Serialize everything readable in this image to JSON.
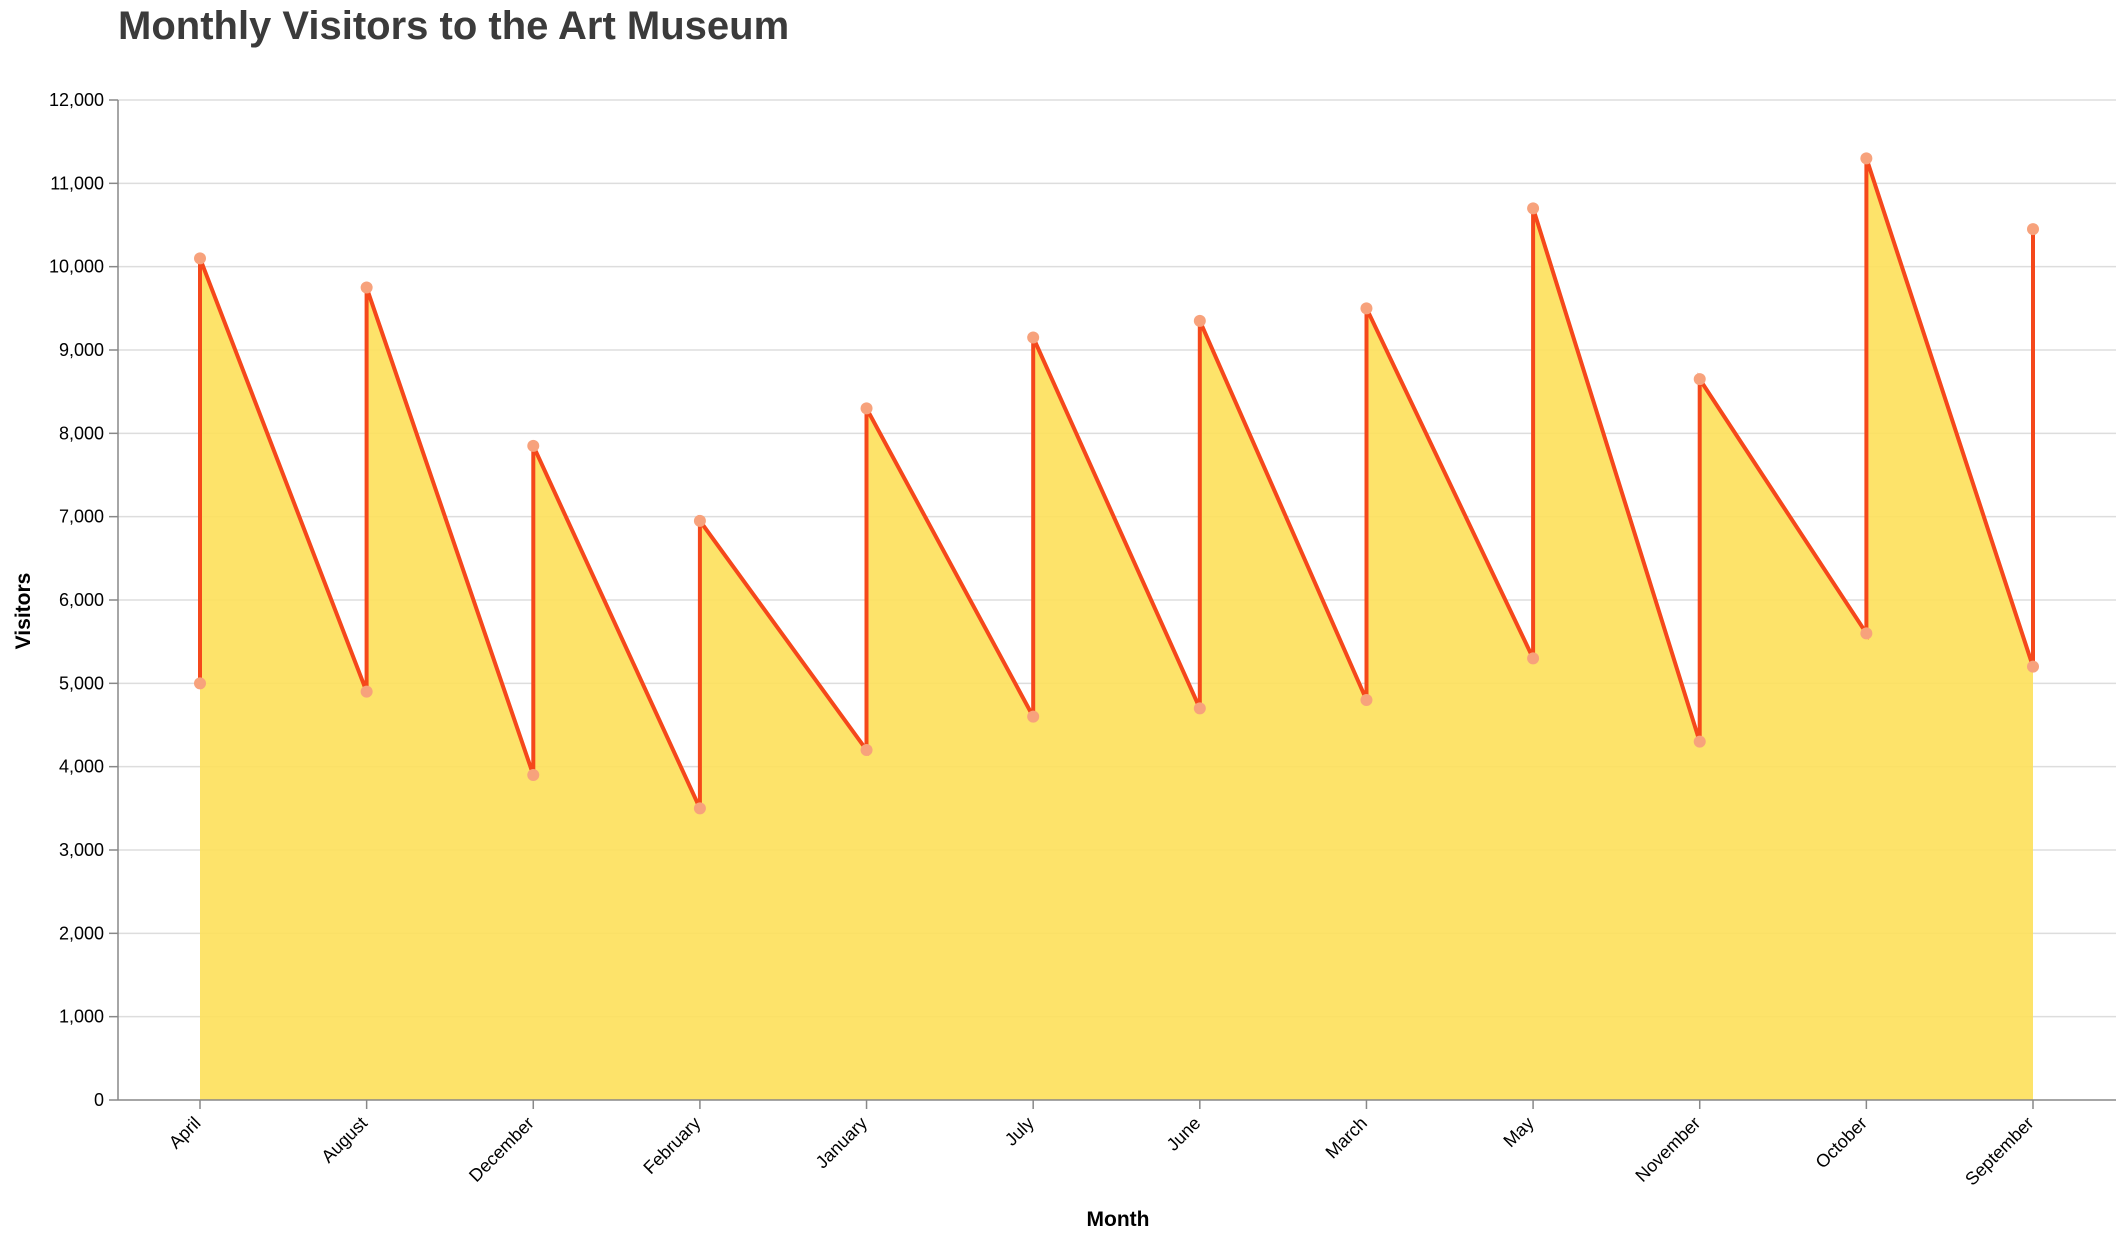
{
  "chart_data": {
    "type": "area",
    "title": "Monthly Visitors to the Art Museum",
    "xlabel": "Month",
    "ylabel": "Visitors",
    "ylim": [
      0,
      12000
    ],
    "yticks": [
      0,
      1000,
      2000,
      3000,
      4000,
      5000,
      6000,
      7000,
      8000,
      9000,
      10000,
      11000,
      12000
    ],
    "ytick_labels": [
      "0",
      "1,000",
      "2,000",
      "3,000",
      "4,000",
      "5,000",
      "6,000",
      "7,000",
      "8,000",
      "9,000",
      "10,000",
      "11,000",
      "12,000"
    ],
    "categories": [
      "April",
      "August",
      "December",
      "February",
      "January",
      "July",
      "June",
      "March",
      "May",
      "November",
      "October",
      "September"
    ],
    "series": [
      {
        "values": [
          5000,
          4900,
          3900,
          3500,
          4200,
          4600,
          4700,
          4800,
          5300,
          4300,
          5600,
          5200
        ]
      },
      {
        "values": [
          10100,
          9750,
          7850,
          6950,
          8300,
          9150,
          9350,
          9500,
          10700,
          8650,
          11300,
          10450
        ]
      }
    ],
    "grid": true,
    "colors": {
      "area": "#fde05a",
      "line": "#f5481b",
      "points": "#f7a27c"
    }
  }
}
